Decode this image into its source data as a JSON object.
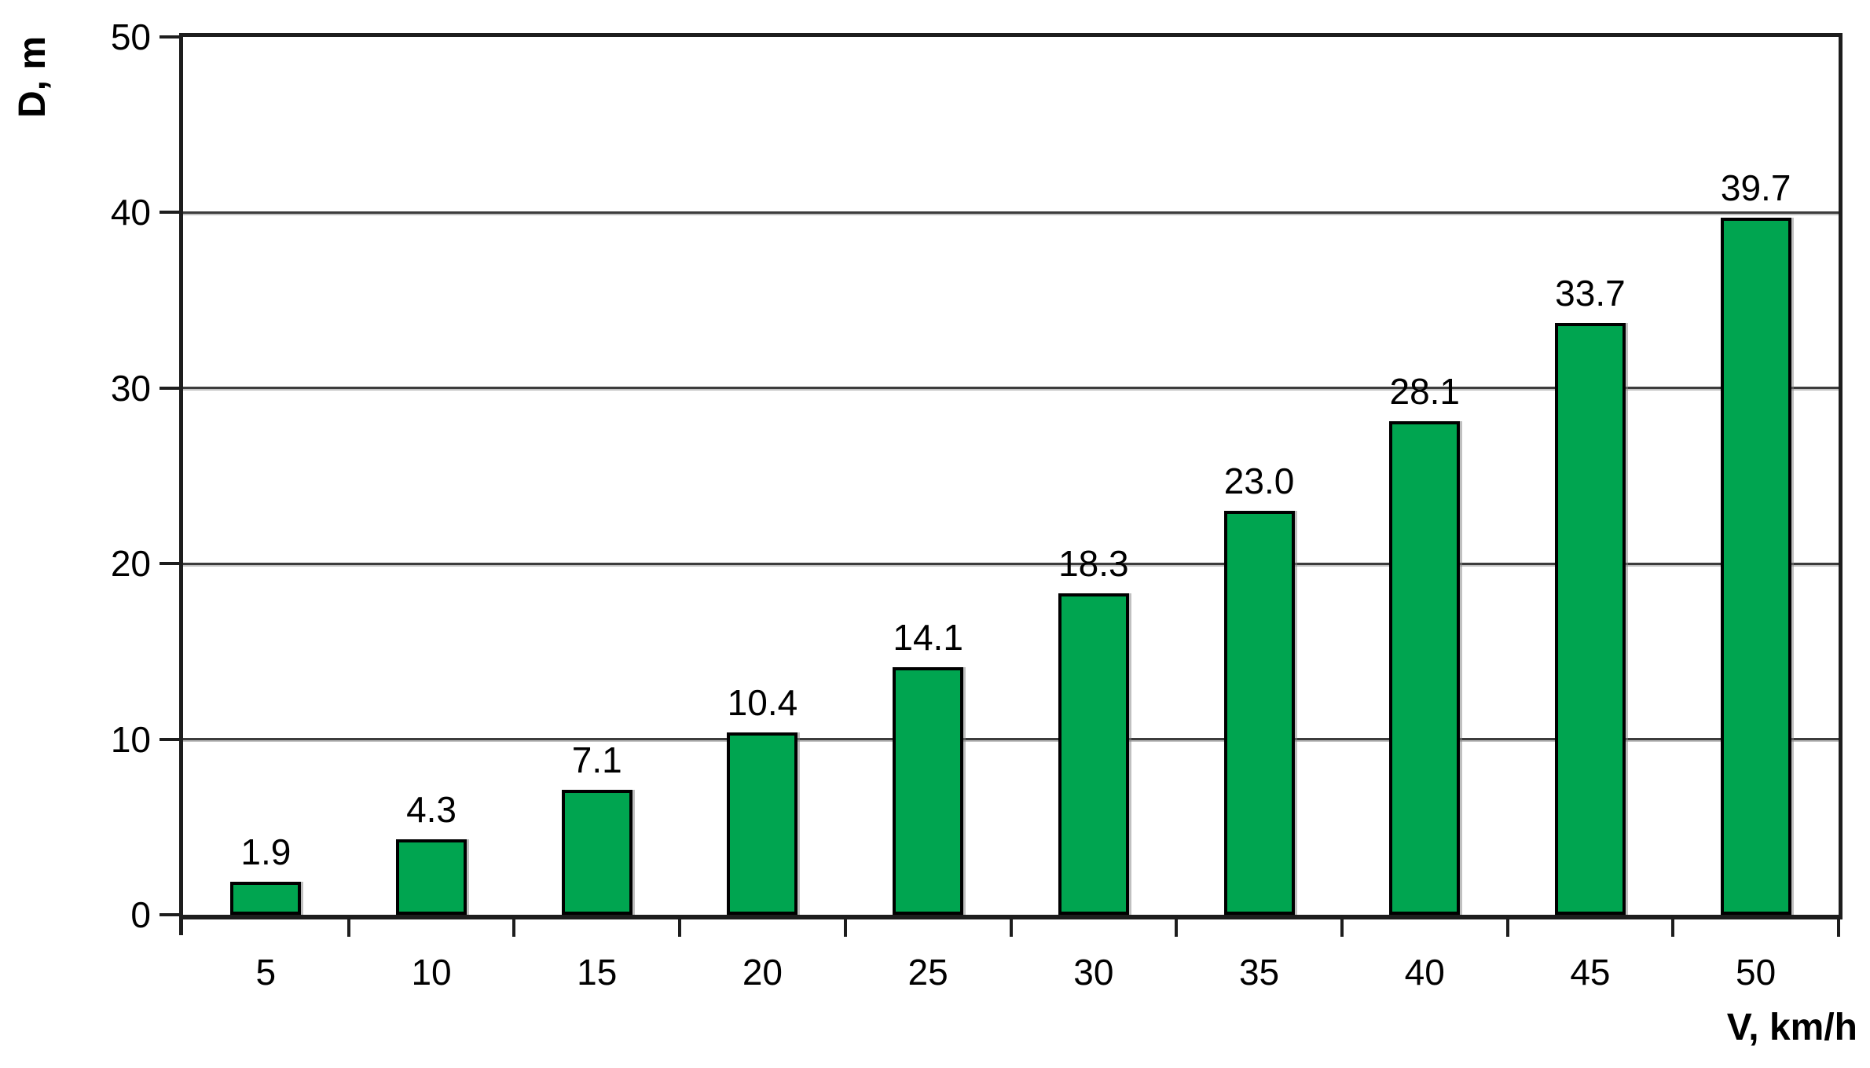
{
  "chart_data": {
    "type": "bar",
    "title": "",
    "xlabel": "V, km/h",
    "ylabel": "D, m",
    "categories": [
      "5",
      "10",
      "15",
      "20",
      "25",
      "30",
      "35",
      "40",
      "45",
      "50"
    ],
    "values": [
      1.9,
      4.3,
      7.1,
      10.4,
      14.1,
      18.3,
      23.0,
      28.1,
      33.7,
      39.7
    ],
    "value_labels": [
      "1.9",
      "4.3",
      "7.1",
      "10.4",
      "14.1",
      "18.3",
      "23.0",
      "28.1",
      "33.7",
      "39.7"
    ],
    "ylim": [
      0,
      50
    ],
    "y_ticks": [
      0,
      10,
      20,
      30,
      40,
      50
    ],
    "y_tick_labels": [
      "0",
      "10",
      "20",
      "30",
      "40",
      "50"
    ],
    "grid": "horizontal gridlines at every 10 units, plot area framed",
    "legend": "none",
    "bar_color": "#00a550",
    "bar_border_color": "#000000",
    "gridline_color": "#3c3c3c",
    "background_color": "#ffffff",
    "text_color": "#000000"
  }
}
